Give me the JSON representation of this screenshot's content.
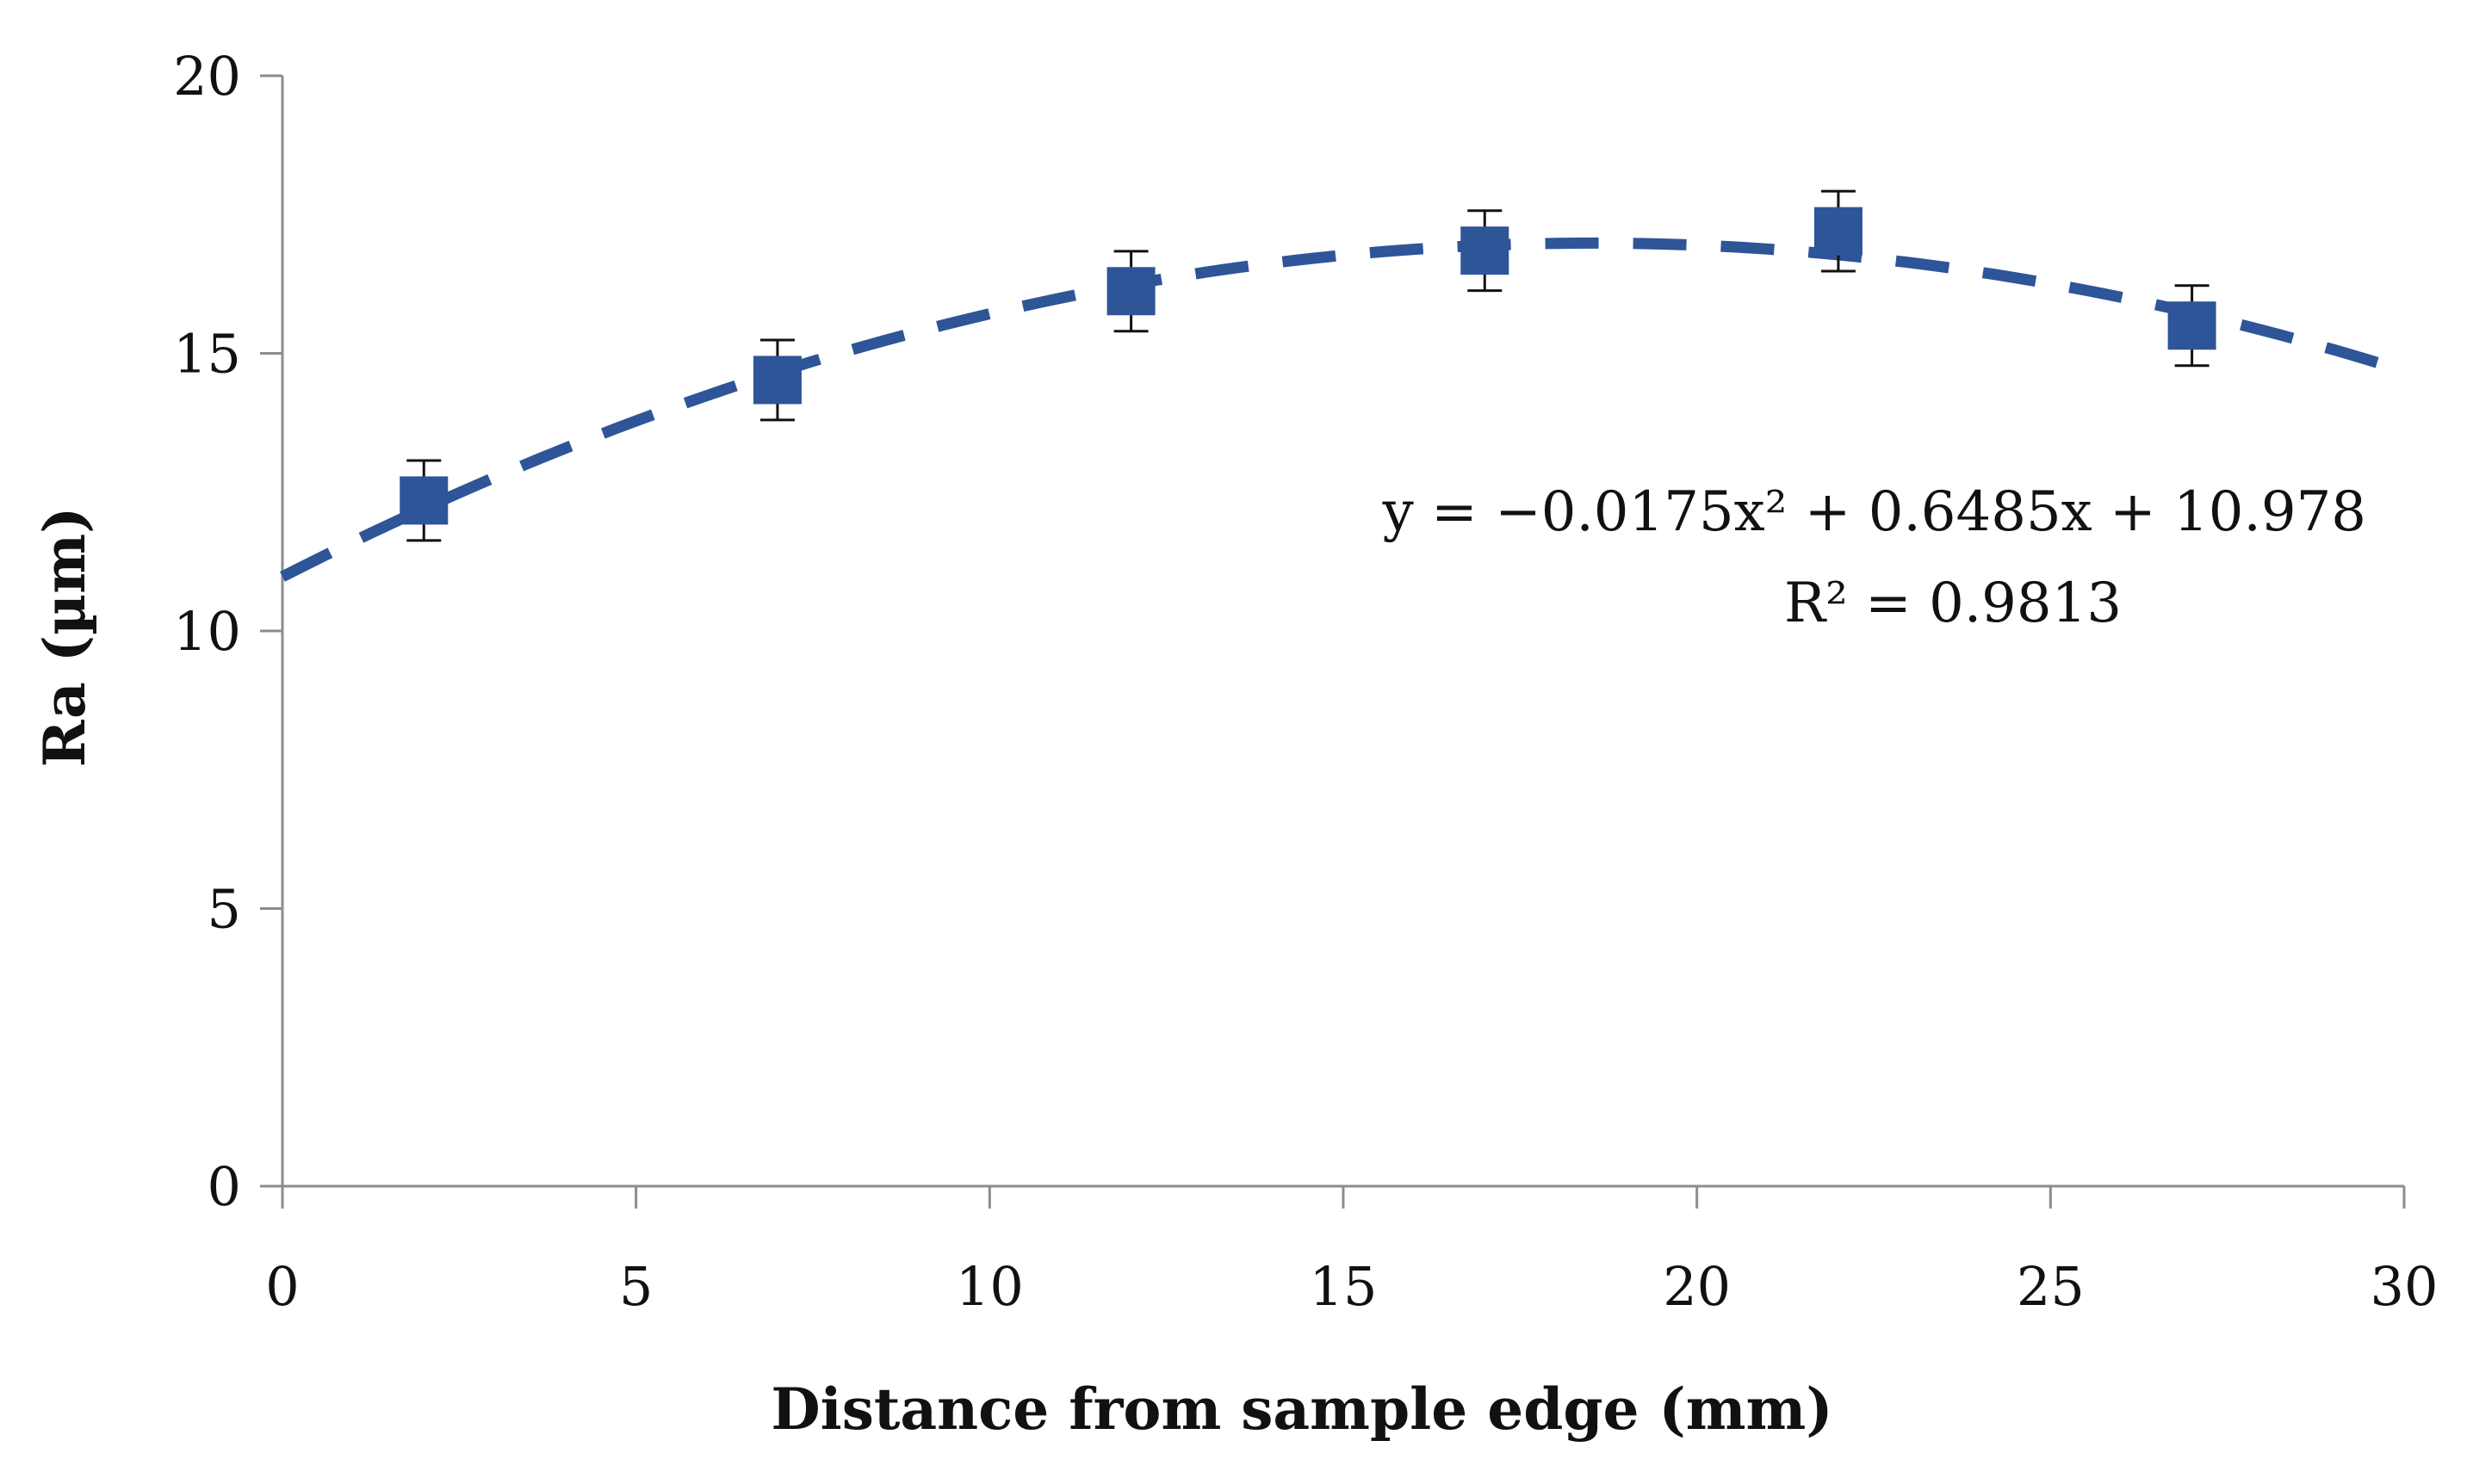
{
  "chart_data": {
    "type": "scatter",
    "title": "",
    "xlabel": "Distance from sample edge (mm)",
    "ylabel": "Ra (µm)",
    "xlim": [
      0,
      30
    ],
    "ylim": [
      0,
      20
    ],
    "x_ticks": [
      0,
      5,
      10,
      15,
      20,
      25,
      30
    ],
    "y_ticks": [
      0,
      5,
      10,
      15,
      20
    ],
    "grid": false,
    "series": [
      {
        "name": "Ra",
        "x": [
          2,
          7,
          12,
          17,
          22,
          27
        ],
        "y": [
          12.35,
          14.52,
          16.12,
          16.85,
          17.2,
          15.5
        ],
        "error": [
          0.72,
          0.72,
          0.72,
          0.72,
          0.72,
          0.72
        ],
        "marker": "square",
        "color": "#2e5597"
      }
    ],
    "trendline": {
      "type": "polynomial",
      "coefficients": [
        -0.0175,
        0.6485,
        10.978
      ],
      "x_range": [
        0,
        30
      ],
      "style": "dashed",
      "color": "#2e5597"
    },
    "annotations": {
      "equation": "y = −0.0175x² + 0.6485x + 10.978",
      "r_squared": "R² = 0.9813"
    },
    "axis_color": "#8c8c8c"
  }
}
